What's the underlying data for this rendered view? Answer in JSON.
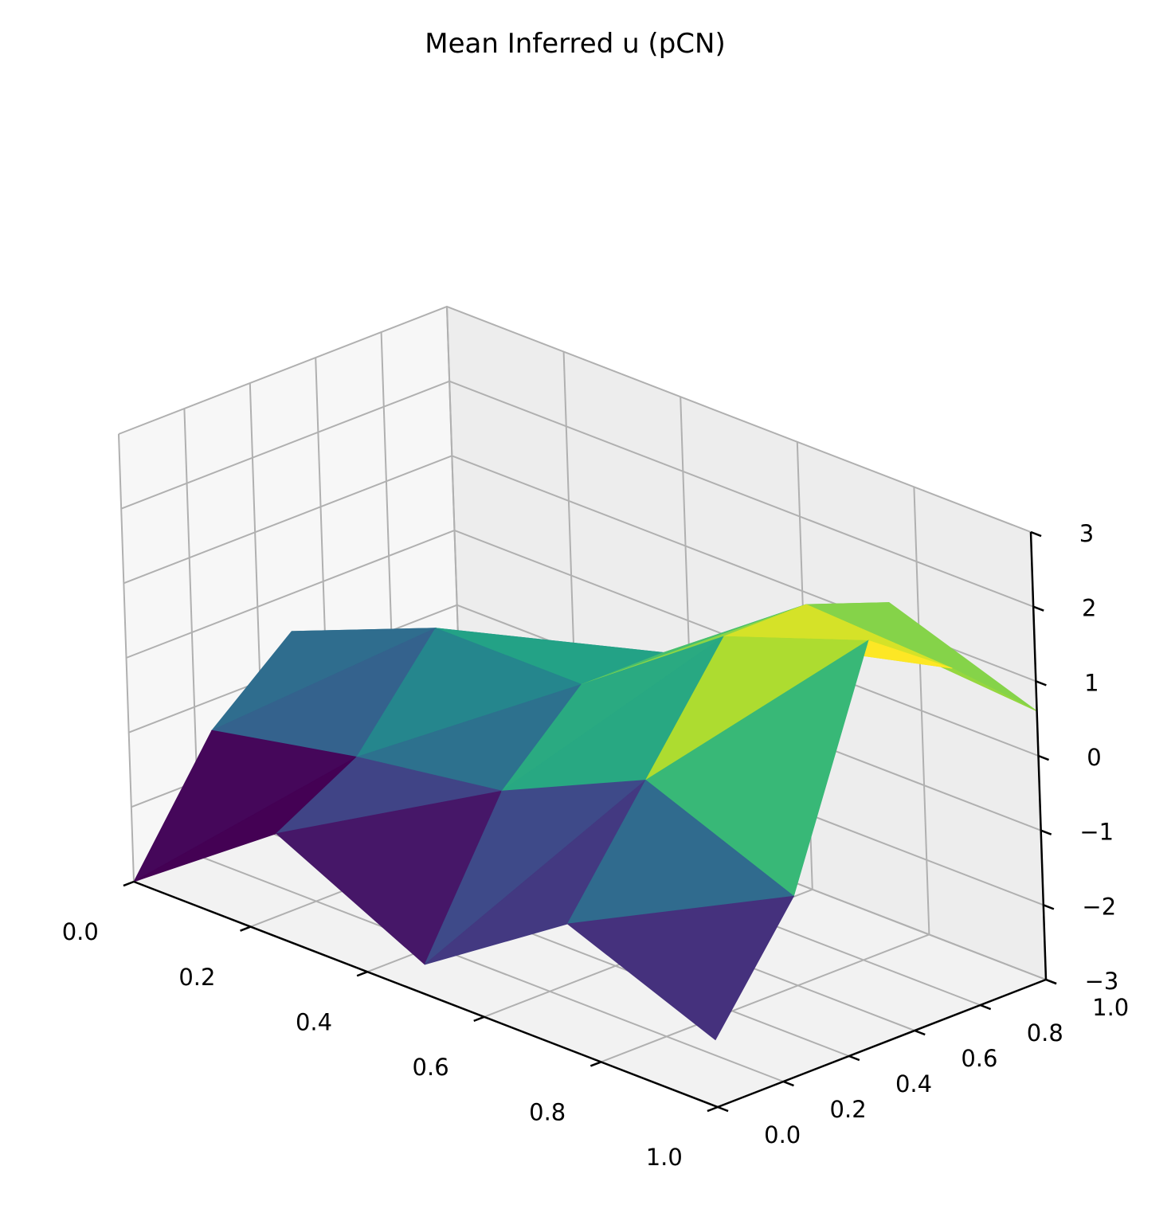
{
  "chart_data": {
    "type": "surface",
    "title": "Mean Inferred u (pCN)",
    "xlabel": "",
    "ylabel": "",
    "zlabel": "",
    "x_ticks": [
      "0.0",
      "0.2",
      "0.4",
      "0.6",
      "0.8",
      "1.0"
    ],
    "y_ticks": [
      "0.0",
      "0.2",
      "0.4",
      "0.6",
      "0.8",
      "1.0"
    ],
    "z_ticks": [
      "−3",
      "−2",
      "−1",
      "0",
      "1",
      "2",
      "3"
    ],
    "xlim": [
      0,
      1
    ],
    "ylim": [
      0,
      1
    ],
    "zlim": [
      -3,
      3
    ],
    "grid": true,
    "colormap": "viridis",
    "x": [
      0,
      0.25,
      0.5,
      0.75,
      1.0
    ],
    "y": [
      0,
      0.25,
      0.5,
      0.75,
      1.0
    ],
    "z": [
      [
        -3.0,
        -1.6,
        -2.6,
        -1.3,
        -2.1
      ],
      [
        -1.4,
        -1.0,
        -0.7,
        0.2,
        -0.6
      ],
      [
        -0.5,
        0.3,
        0.3,
        1.7,
        2.4
      ],
      [
        -1.4,
        -1.0,
        0.3,
        1.7,
        1.6
      ],
      [
        -1.8,
        -1.3,
        -0.3,
        1.3,
        0.6
      ]
    ]
  }
}
